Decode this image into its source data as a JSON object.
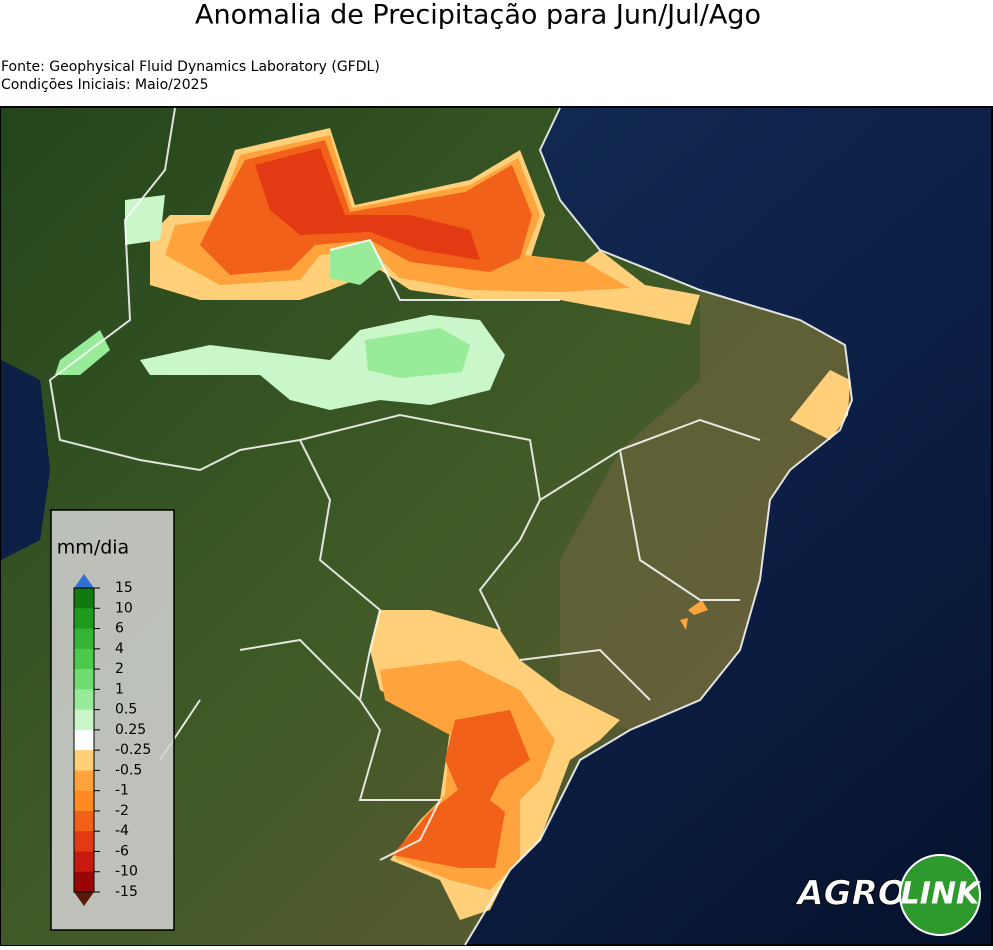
{
  "header": {
    "title": "Anomalia de Precipitação para Jun/Jul/Ago",
    "source": "Fonte: Geophysical Fluid Dynamics Laboratory (GFDL)",
    "initial_conditions": "Condições Iniciais: Maio/2025"
  },
  "legend": {
    "title": "mm/dia",
    "ticks": [
      15,
      10,
      6,
      4,
      2,
      1,
      0.5,
      0.25,
      -0.25,
      -0.5,
      -1,
      -2,
      -4,
      -6,
      -10,
      -15
    ],
    "colors": [
      "#107a10",
      "#1f9a1f",
      "#34b334",
      "#4cc84c",
      "#6fdc6f",
      "#98eb98",
      "#c9f7c9",
      "#ffffff",
      "#ffcf7a",
      "#ffa43c",
      "#ff8a22",
      "#f2611a",
      "#e23a12",
      "#c81a0e",
      "#9a0505"
    ],
    "over_color": "#2f6fd6",
    "under_color": "#5a1a0a"
  },
  "logo": {
    "left": "AGRO",
    "right": "LINK"
  }
}
